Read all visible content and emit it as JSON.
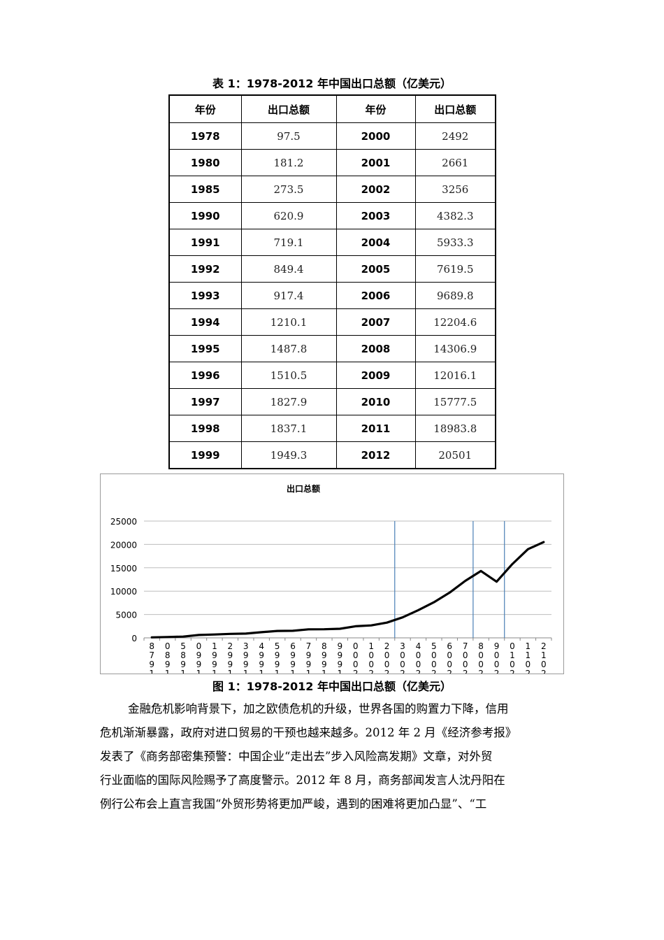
{
  "table": {
    "caption": "表 1：1978-2012 年中国出口总额（亿美元）",
    "headers": [
      "年份",
      "出口总额",
      "年份",
      "出口总额"
    ],
    "rows": [
      [
        "1978",
        "97.5",
        "2000",
        "2492"
      ],
      [
        "1980",
        "181.2",
        "2001",
        "2661"
      ],
      [
        "1985",
        "273.5",
        "2002",
        "3256"
      ],
      [
        "1990",
        "620.9",
        "2003",
        "4382.3"
      ],
      [
        "1991",
        "719.1",
        "2004",
        "5933.3"
      ],
      [
        "1992",
        "849.4",
        "2005",
        "7619.5"
      ],
      [
        "1993",
        "917.4",
        "2006",
        "9689.8"
      ],
      [
        "1994",
        "1210.1",
        "2007",
        "12204.6"
      ],
      [
        "1995",
        "1487.8",
        "2008",
        "14306.9"
      ],
      [
        "1996",
        "1510.5",
        "2009",
        "12016.1"
      ],
      [
        "1997",
        "1827.9",
        "2010",
        "15777.5"
      ],
      [
        "1998",
        "1837.1",
        "2011",
        "18983.8"
      ],
      [
        "1999",
        "1949.3",
        "2012",
        "20501"
      ]
    ]
  },
  "chart_data": {
    "type": "line",
    "title": "出口总额",
    "xlabel": "",
    "ylabel": "",
    "x": [
      "1978",
      "1980",
      "1985",
      "1990",
      "1991",
      "1992",
      "1993",
      "1994",
      "1995",
      "1996",
      "1997",
      "1998",
      "1999",
      "2000",
      "2001",
      "2002",
      "2003",
      "2004",
      "2005",
      "2006",
      "2007",
      "2008",
      "2009",
      "2010",
      "2011",
      "2012"
    ],
    "series": [
      {
        "values": [
          97.5,
          181.2,
          273.5,
          620.9,
          719.1,
          849.4,
          917.4,
          1210.1,
          1487.8,
          1510.5,
          1827.9,
          1837.1,
          1949.3,
          2492,
          2661,
          3256,
          4382.3,
          5933.3,
          7619.5,
          9689.8,
          12204.6,
          14306.9,
          12016.1,
          15777.5,
          18983.8,
          20501
        ]
      }
    ],
    "ylim": [
      0,
      25000
    ],
    "yticks": [
      "0",
      "5000",
      "10000",
      "15000",
      "20000",
      "25000"
    ],
    "grid": true,
    "marker_lines_after_years": [
      "2002",
      "2007",
      "2009"
    ],
    "line_color": "#000000",
    "marker_color": "#4a7fb5"
  },
  "figure_caption": "图 1：1978-2012 年中国出口总额（亿美元）",
  "paragraph": [
    "金融危机影响背景下，加之欧债危机的升级，世界各国的购置力下降，信用",
    "危机渐渐暴露，政府对进口贸易的干预也越来越多。2012 年 2 月《经济参考报》",
    "发表了《商务部密集预警：中国企业“走出去”步入风险高发期》文章，对外贸",
    "行业面临的国际风险赐予了高度警示。2012 年 8 月，商务部闻发言人沈丹阳在",
    "例行公布会上直言我国“外贸形势将更加严峻，遇到的困难将更加凸显”、“工"
  ]
}
